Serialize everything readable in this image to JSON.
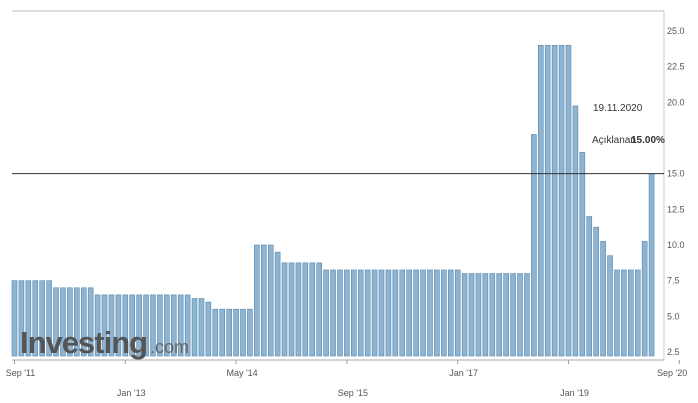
{
  "chart_data": {
    "type": "bar",
    "title": "",
    "xlabel": "",
    "ylabel": "",
    "ylim": [
      2.5,
      25.0
    ],
    "y_ticks": [
      {
        "value": 25.0,
        "label": "25.0"
      },
      {
        "value": 22.5,
        "label": "22.5"
      },
      {
        "value": 20.0,
        "label": "20.0"
      },
      {
        "value": 15.0,
        "label": "15.0"
      },
      {
        "value": 12.5,
        "label": "12.5"
      },
      {
        "value": 10.0,
        "label": "10.0"
      },
      {
        "value": 7.5,
        "label": "7.5"
      },
      {
        "value": 5.0,
        "label": "5.0"
      },
      {
        "value": 2.5,
        "label": "2.5"
      }
    ],
    "x_ticks": [
      {
        "index": 0,
        "label": "Sep '11"
      },
      {
        "index": 16,
        "label": "Jan '13"
      },
      {
        "index": 32,
        "label": "May '14"
      },
      {
        "index": 48,
        "label": "Sep '15"
      },
      {
        "index": 64,
        "label": "Jan '17"
      },
      {
        "index": 80,
        "label": "Jan '19"
      },
      {
        "index": 96,
        "label": "Sep '20"
      }
    ],
    "values": [
      7.5,
      7.5,
      7.5,
      7.5,
      7.5,
      7.5,
      7.0,
      7.0,
      7.0,
      7.0,
      7.0,
      7.0,
      6.5,
      6.5,
      6.5,
      6.5,
      6.5,
      6.5,
      6.5,
      6.5,
      6.5,
      6.5,
      6.5,
      6.5,
      6.5,
      6.5,
      6.25,
      6.25,
      6.0,
      5.5,
      5.5,
      5.5,
      5.5,
      5.5,
      5.5,
      10.0,
      10.0,
      10.0,
      9.5,
      8.75,
      8.75,
      8.75,
      8.75,
      8.75,
      8.75,
      8.25,
      8.25,
      8.25,
      8.25,
      8.25,
      8.25,
      8.25,
      8.25,
      8.25,
      8.25,
      8.25,
      8.25,
      8.25,
      8.25,
      8.25,
      8.25,
      8.25,
      8.25,
      8.25,
      8.25,
      8.0,
      8.0,
      8.0,
      8.0,
      8.0,
      8.0,
      8.0,
      8.0,
      8.0,
      8.0,
      17.75,
      24.0,
      24.0,
      24.0,
      24.0,
      24.0,
      19.75,
      16.5,
      12.0,
      11.25,
      10.25,
      9.25,
      8.25,
      8.25,
      8.25,
      8.25,
      10.25,
      15.0
    ],
    "bar_color": "#8db4d2",
    "bar_edge_color": "#5a87aa",
    "reference_line": {
      "value": 15.0,
      "color": "#333333"
    },
    "annotation": {
      "date": "19.11.2020",
      "label": "Açıklanan",
      "value": "15.00%"
    },
    "grid": false,
    "legend": "none"
  },
  "branding": {
    "logo_main": "Investing",
    "logo_sub": ".com"
  }
}
